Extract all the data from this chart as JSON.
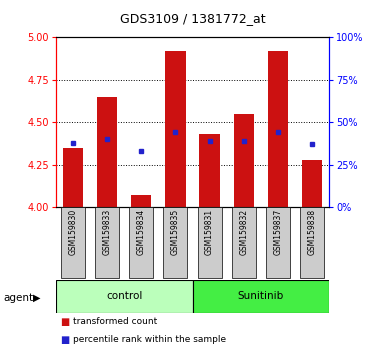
{
  "title": "GDS3109 / 1381772_at",
  "samples": [
    "GSM159830",
    "GSM159833",
    "GSM159834",
    "GSM159835",
    "GSM159831",
    "GSM159832",
    "GSM159837",
    "GSM159838"
  ],
  "red_values": [
    4.35,
    4.65,
    4.07,
    4.92,
    4.43,
    4.55,
    4.92,
    4.28
  ],
  "blue_values": [
    4.38,
    4.4,
    4.33,
    4.44,
    4.39,
    4.39,
    4.44,
    4.37
  ],
  "ymin": 4.0,
  "ymax": 5.0,
  "yticks": [
    4.0,
    4.25,
    4.5,
    4.75,
    5.0
  ],
  "right_yticks": [
    0,
    25,
    50,
    75,
    100
  ],
  "right_yticklabels": [
    "0%",
    "25%",
    "50%",
    "75%",
    "100%"
  ],
  "bar_color": "#cc1111",
  "dot_color": "#2222cc",
  "bar_width": 0.6,
  "control_color": "#bbffbb",
  "sunitinib_color": "#44ee44",
  "sample_box_color": "#cccccc",
  "legend_items": [
    "transformed count",
    "percentile rank within the sample"
  ]
}
